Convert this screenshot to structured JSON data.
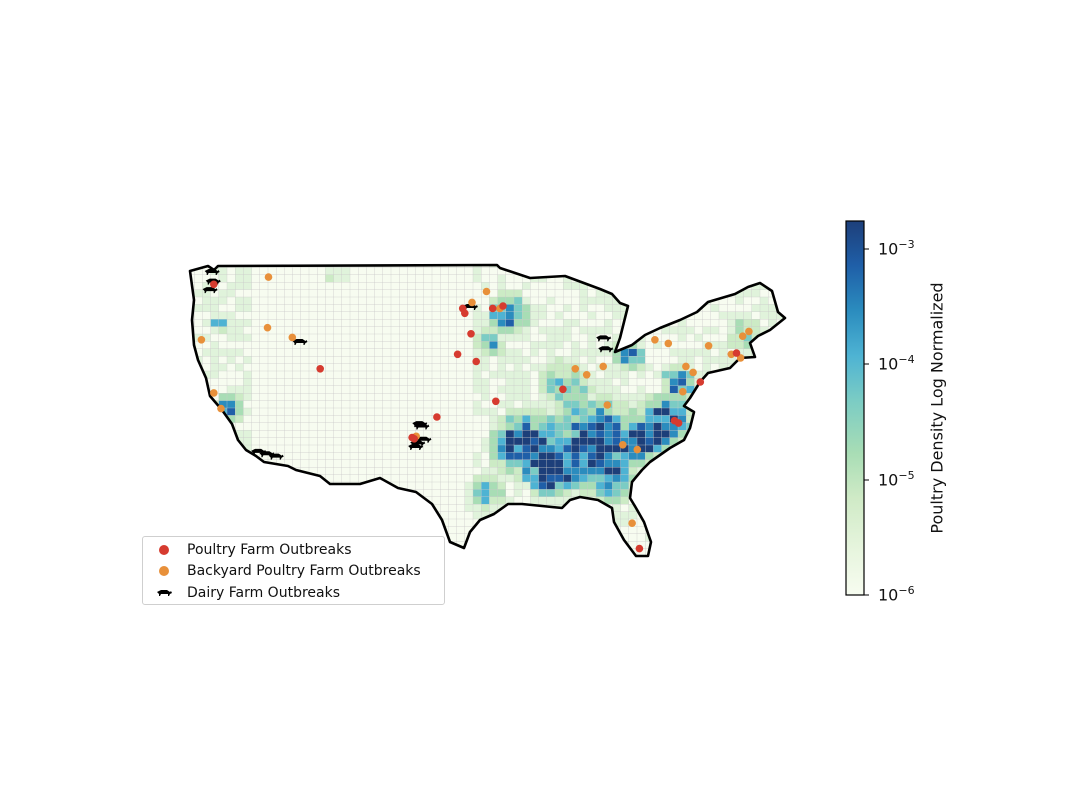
{
  "map": {
    "region": "contiguous-united-states",
    "county_fill_scale": "log",
    "colormap": [
      "#f7fcf0",
      "#e0f3db",
      "#ccebc5",
      "#a8ddb5",
      "#7bccc4",
      "#4eb3d3",
      "#2b8cbe",
      "#1f5fa8",
      "#1d3f7a"
    ]
  },
  "legend": {
    "items": [
      {
        "label": "Poultry Farm Outbreaks",
        "color": "#d63b2f",
        "marker": "dot"
      },
      {
        "label": "Backyard Poultry Farm Outbreaks",
        "color": "#e8903a",
        "marker": "dot"
      },
      {
        "label": "Dairy Farm Outbreaks",
        "color": "#000000",
        "marker": "cow-icon"
      }
    ]
  },
  "colorbar": {
    "label": "Poultry Density Log Normalized",
    "scale": "log",
    "range": [
      1e-06,
      0.0018
    ],
    "ticks": [
      {
        "base": "10",
        "exp": "−3"
      },
      {
        "base": "10",
        "exp": "−4"
      },
      {
        "base": "10",
        "exp": "−5"
      },
      {
        "base": "10",
        "exp": "−6"
      }
    ]
  },
  "outbreaks": {
    "poultry_farm": [
      {
        "lon": -122.2,
        "lat": 47.6
      },
      {
        "lon": -98.1,
        "lat": 45.6
      },
      {
        "lon": -97.9,
        "lat": 45.2
      },
      {
        "lon": -95.2,
        "lat": 45.6
      },
      {
        "lon": -94.2,
        "lat": 45.8
      },
      {
        "lon": -97.3,
        "lat": 43.5
      },
      {
        "lon": -98.6,
        "lat": 41.8
      },
      {
        "lon": -96.8,
        "lat": 41.2
      },
      {
        "lon": -111.9,
        "lat": 40.6
      },
      {
        "lon": -94.9,
        "lat": 37.9
      },
      {
        "lon": -100.6,
        "lat": 36.6
      },
      {
        "lon": -103.0,
        "lat": 34.9
      },
      {
        "lon": -102.8,
        "lat": 34.8
      },
      {
        "lon": -88.4,
        "lat": 38.9
      },
      {
        "lon": -77.6,
        "lat": 36.3
      },
      {
        "lon": -77.2,
        "lat": 36.1
      },
      {
        "lon": -81.0,
        "lat": 25.7
      },
      {
        "lon": -75.1,
        "lat": 39.5
      },
      {
        "lon": -71.6,
        "lat": 41.9
      }
    ],
    "backyard_poultry": [
      {
        "lon": -116.9,
        "lat": 48.2
      },
      {
        "lon": -95.8,
        "lat": 47.0
      },
      {
        "lon": -97.2,
        "lat": 46.1
      },
      {
        "lon": -94.5,
        "lat": 45.6
      },
      {
        "lon": -123.4,
        "lat": 43.0
      },
      {
        "lon": -117.0,
        "lat": 44.0
      },
      {
        "lon": -114.6,
        "lat": 43.2
      },
      {
        "lon": -122.2,
        "lat": 38.6
      },
      {
        "lon": -121.5,
        "lat": 37.3
      },
      {
        "lon": -102.6,
        "lat": 35.0
      },
      {
        "lon": -87.2,
        "lat": 40.6
      },
      {
        "lon": -86.1,
        "lat": 40.1
      },
      {
        "lon": -84.5,
        "lat": 40.8
      },
      {
        "lon": -79.5,
        "lat": 43.0
      },
      {
        "lon": -78.2,
        "lat": 42.7
      },
      {
        "lon": -76.5,
        "lat": 40.8
      },
      {
        "lon": -75.8,
        "lat": 40.3
      },
      {
        "lon": -76.8,
        "lat": 38.7
      },
      {
        "lon": -84.1,
        "lat": 37.6
      },
      {
        "lon": -82.6,
        "lat": 34.3
      },
      {
        "lon": -81.2,
        "lat": 33.9
      },
      {
        "lon": -81.7,
        "lat": 27.8
      },
      {
        "lon": -71.0,
        "lat": 43.3
      },
      {
        "lon": -70.4,
        "lat": 43.7
      },
      {
        "lon": -72.1,
        "lat": 41.8
      },
      {
        "lon": -71.2,
        "lat": 41.5
      },
      {
        "lon": -74.3,
        "lat": 42.5
      }
    ],
    "dairy_farm": [
      {
        "lon": -122.5,
        "lat": 48.7
      },
      {
        "lon": -122.4,
        "lat": 47.9
      },
      {
        "lon": -122.7,
        "lat": 47.2
      },
      {
        "lon": -114.0,
        "lat": 42.9
      },
      {
        "lon": -97.5,
        "lat": 45.8
      },
      {
        "lon": -84.6,
        "lat": 43.2
      },
      {
        "lon": -84.4,
        "lat": 42.3
      },
      {
        "lon": -102.4,
        "lat": 36.1
      },
      {
        "lon": -102.2,
        "lat": 35.9
      },
      {
        "lon": -102.6,
        "lat": 34.5
      },
      {
        "lon": -102.8,
        "lat": 34.2
      },
      {
        "lon": -102.0,
        "lat": 34.8
      },
      {
        "lon": -118.0,
        "lat": 33.8
      },
      {
        "lon": -117.2,
        "lat": 33.6
      },
      {
        "lon": -116.3,
        "lat": 33.4
      }
    ]
  }
}
